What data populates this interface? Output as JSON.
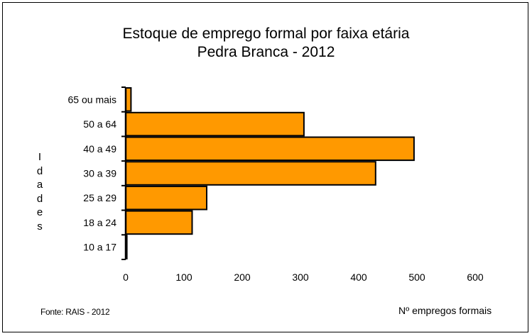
{
  "chart_data": {
    "type": "bar",
    "orientation": "horizontal",
    "title": "Estoque de emprego formal por faixa etária",
    "subtitle": "Pedra Branca - 2012",
    "xlabel": "Nº empregos formais",
    "ylabel": "Idades",
    "categories": [
      "65 ou mais",
      "50 a 64",
      "40 a 49",
      "30 a 39",
      "25 a 29",
      "18 a 24",
      "10 a 17"
    ],
    "values": [
      9,
      306,
      495,
      429,
      139,
      114,
      2
    ],
    "xlim": [
      0,
      600
    ],
    "xticks": [
      "0",
      "100",
      "200",
      "300",
      "400",
      "500",
      "600"
    ],
    "grid": false,
    "legend": "none",
    "bar_color": "#FF9900",
    "bar_border_color": "#000000",
    "source_note": "Fonte: RAIS - 2012"
  }
}
